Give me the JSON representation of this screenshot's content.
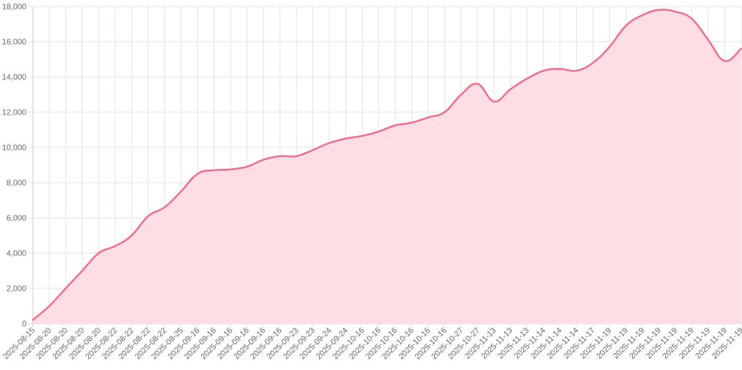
{
  "chart_data": {
    "type": "area",
    "title": "",
    "xlabel": "",
    "ylabel": "",
    "ylim": [
      0,
      18000
    ],
    "y_ticks": [
      "0",
      "2,000",
      "4,000",
      "6,000",
      "8,000",
      "10,000",
      "12,000",
      "14,000",
      "16,000",
      "18,000"
    ],
    "y_tick_values": [
      0,
      2000,
      4000,
      6000,
      8000,
      10000,
      12000,
      14000,
      16000,
      18000
    ],
    "grid": true,
    "legend": "none",
    "colors": {
      "line": "#f06b8b",
      "fill": "#ffdde4",
      "grid": "#e6e6e6"
    },
    "categories": [
      "2025-08-15",
      "2025-08-20",
      "2025-08-20",
      "2025-08-20",
      "2025-08-20",
      "2025-08-22",
      "2025-08-22",
      "2025-08-22",
      "2025-08-22",
      "2025-08-25",
      "2025-09-16",
      "2025-09-16",
      "2025-09-16",
      "2025-09-16",
      "2025-09-16",
      "2025-09-16",
      "2025-09-23",
      "2025-09-23",
      "2025-09-24",
      "2025-09-24",
      "2025-10-16",
      "2025-10-16",
      "2025-10-16",
      "2025-10-16",
      "2025-10-16",
      "2025-10-16",
      "2025-10-27",
      "2025-10-27",
      "2025-11-13",
      "2025-11-13",
      "2025-11-13",
      "2025-11-14",
      "2025-11-14",
      "2025-11-14",
      "2025-11-17",
      "2025-11-19",
      "2025-11-19",
      "2025-11-19",
      "2025-11-19",
      "2025-11-19",
      "2025-11-19",
      "2025-11-19",
      "2025-11-19",
      "2025-11-19"
    ],
    "series": [
      {
        "values": [
          200,
          1000,
          2000,
          3000,
          4000,
          4400,
          5000,
          6100,
          6600,
          7500,
          8500,
          8700,
          8750,
          8900,
          9300,
          9500,
          9500,
          9850,
          10250,
          10500,
          10650,
          10900,
          11250,
          11400,
          11700,
          12000,
          13000,
          13600,
          12600,
          13300,
          13900,
          14350,
          14450,
          14350,
          14800,
          15700,
          16900,
          17500,
          17800,
          17700,
          17300,
          16100,
          14900,
          15600
        ]
      }
    ]
  }
}
